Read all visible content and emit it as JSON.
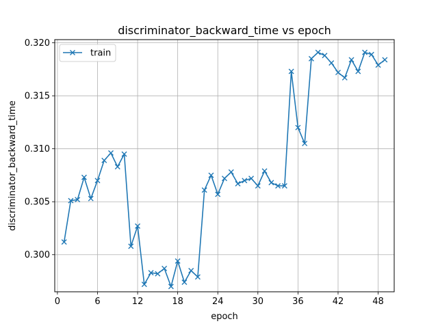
{
  "chart_data": {
    "type": "line",
    "title": "discriminator_backward_time vs epoch",
    "xlabel": "epoch",
    "ylabel": "discriminator_backward_time",
    "xlim": [
      -0.4,
      50.4
    ],
    "ylim": [
      0.2965,
      0.3203
    ],
    "xticks": [
      0,
      6,
      12,
      18,
      24,
      30,
      36,
      42,
      48
    ],
    "yticks": [
      0.3,
      0.305,
      0.31,
      0.315,
      0.32
    ],
    "ytick_labels": [
      "0.300",
      "0.305",
      "0.310",
      "0.315",
      "0.320"
    ],
    "grid": true,
    "legend_position": "top-left",
    "series": [
      {
        "name": "train",
        "color": "#1f77b4",
        "marker": "x",
        "x": [
          1,
          2,
          3,
          4,
          5,
          6,
          7,
          8,
          9,
          10,
          11,
          12,
          13,
          14,
          15,
          16,
          17,
          18,
          19,
          20,
          21,
          22,
          23,
          24,
          25,
          26,
          27,
          28,
          29,
          30,
          31,
          32,
          33,
          34,
          35,
          36,
          37,
          38,
          39,
          40,
          41,
          42,
          43,
          44,
          45,
          46,
          47,
          48,
          49
        ],
        "y": [
          0.3012,
          0.3051,
          0.3052,
          0.3073,
          0.3053,
          0.307,
          0.3089,
          0.3096,
          0.3083,
          0.3095,
          0.3008,
          0.3027,
          0.2972,
          0.2983,
          0.2982,
          0.2987,
          0.297,
          0.2994,
          0.2974,
          0.2985,
          0.2979,
          0.3061,
          0.3075,
          0.3057,
          0.3072,
          0.3078,
          0.3067,
          0.307,
          0.3072,
          0.3065,
          0.3079,
          0.3068,
          0.3065,
          0.3065,
          0.3173,
          0.312,
          0.3105,
          0.3185,
          0.3191,
          0.3188,
          0.3181,
          0.3172,
          0.3167,
          0.3184,
          0.3173,
          0.3191,
          0.3189,
          0.3179,
          0.3184
        ]
      }
    ]
  }
}
